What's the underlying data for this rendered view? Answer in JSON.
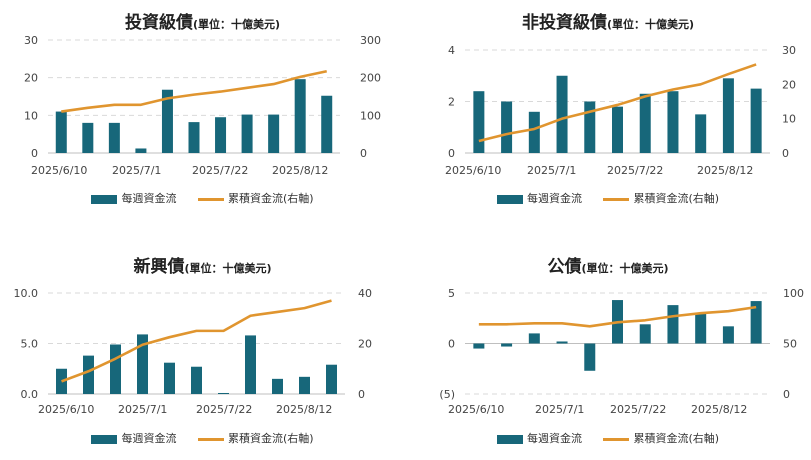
{
  "colors": {
    "bar": "#17677a",
    "line": "#e0952f",
    "grid": "#d9d9d9",
    "negative_label": "#c00000"
  },
  "legend": {
    "bar_label": "每週資金流",
    "line_label": "累積資金流(右軸)"
  },
  "chart_data": [
    {
      "type": "bar+line",
      "title": "投資級債",
      "unit": "(單位：十億美元)",
      "x_tick_labels": [
        "2025/6/10",
        "2025/7/1",
        "2025/7/22",
        "2025/8/12"
      ],
      "left_axis": {
        "ylim": [
          0,
          30
        ],
        "ticks": [
          "0",
          "10",
          "20",
          "30"
        ]
      },
      "right_axis": {
        "ylim": [
          0,
          300
        ],
        "ticks": [
          "0",
          "100",
          "200",
          "300"
        ]
      },
      "series": [
        {
          "name": "每週資金流",
          "type": "bar",
          "values": [
            11,
            8,
            8,
            1.2,
            16.8,
            8.2,
            9.5,
            10.2,
            10.2,
            19.6,
            15.2
          ]
        },
        {
          "name": "累積資金流(右軸)",
          "type": "line",
          "axis": "right",
          "values": [
            110,
            120,
            128,
            128,
            145,
            155,
            163,
            173,
            183,
            202,
            217
          ]
        }
      ]
    },
    {
      "type": "bar+line",
      "title": "非投資級債",
      "unit": "(單位：十億美元)",
      "x_tick_labels": [
        "2025/6/10",
        "2025/7/1",
        "2025/7/22",
        "2025/8/12"
      ],
      "left_axis": {
        "ylim": [
          0,
          4
        ],
        "ticks": [
          "0",
          "2",
          "4"
        ]
      },
      "right_axis": {
        "ylim": [
          0,
          30
        ],
        "ticks": [
          "0",
          "10",
          "20",
          "30"
        ]
      },
      "series": [
        {
          "name": "每週資金流",
          "type": "bar",
          "values": [
            2.4,
            2.0,
            1.6,
            3.0,
            2.0,
            1.8,
            2.3,
            2.4,
            1.5,
            2.9,
            2.5
          ]
        },
        {
          "name": "累積資金流(右軸)",
          "type": "line",
          "axis": "right",
          "values": [
            3.5,
            5.5,
            7,
            10,
            12,
            14,
            16.5,
            18.5,
            20,
            23,
            25.8
          ]
        }
      ]
    },
    {
      "type": "bar+line",
      "title": "新興債",
      "unit": "(單位：十億美元)",
      "x_tick_labels": [
        "2025/6/10",
        "2025/7/1",
        "2025/7/22",
        "2025/8/12"
      ],
      "left_axis": {
        "ylim": [
          0,
          10
        ],
        "ticks": [
          "0.0",
          "5.0",
          "10.0"
        ]
      },
      "right_axis": {
        "ylim": [
          0,
          40
        ],
        "ticks": [
          "0",
          "20",
          "40"
        ]
      },
      "series": [
        {
          "name": "每週資金流",
          "type": "bar",
          "values": [
            2.5,
            3.8,
            4.9,
            5.9,
            3.1,
            2.7,
            0.1,
            5.8,
            1.5,
            1.7,
            2.9
          ]
        },
        {
          "name": "累積資金流(右軸)",
          "type": "line",
          "axis": "right",
          "values": [
            5,
            9,
            14,
            19.5,
            22.5,
            25,
            25,
            31,
            32.5,
            34,
            37
          ]
        }
      ]
    },
    {
      "type": "bar+line",
      "title": "公債",
      "unit": "(單位：十億美元)",
      "x_tick_labels": [
        "2025/6/10",
        "2025/7/1",
        "2025/7/22",
        "2025/8/12"
      ],
      "left_axis": {
        "ylim": [
          -5,
          5
        ],
        "ticks": [
          "(5)",
          "0",
          "5"
        ],
        "negative_ticks": [
          "(5)"
        ]
      },
      "right_axis": {
        "ylim": [
          0,
          100
        ],
        "ticks": [
          "0",
          "50",
          "100"
        ]
      },
      "series": [
        {
          "name": "每週資金流",
          "type": "bar",
          "values": [
            -0.5,
            -0.3,
            1.0,
            0.2,
            -2.7,
            4.3,
            1.9,
            3.8,
            3.0,
            1.7,
            4.2
          ]
        },
        {
          "name": "累積資金流(右軸)",
          "type": "line",
          "axis": "right",
          "values": [
            69,
            69,
            70,
            70,
            67,
            71,
            73,
            77,
            80,
            82,
            86
          ]
        }
      ]
    }
  ]
}
